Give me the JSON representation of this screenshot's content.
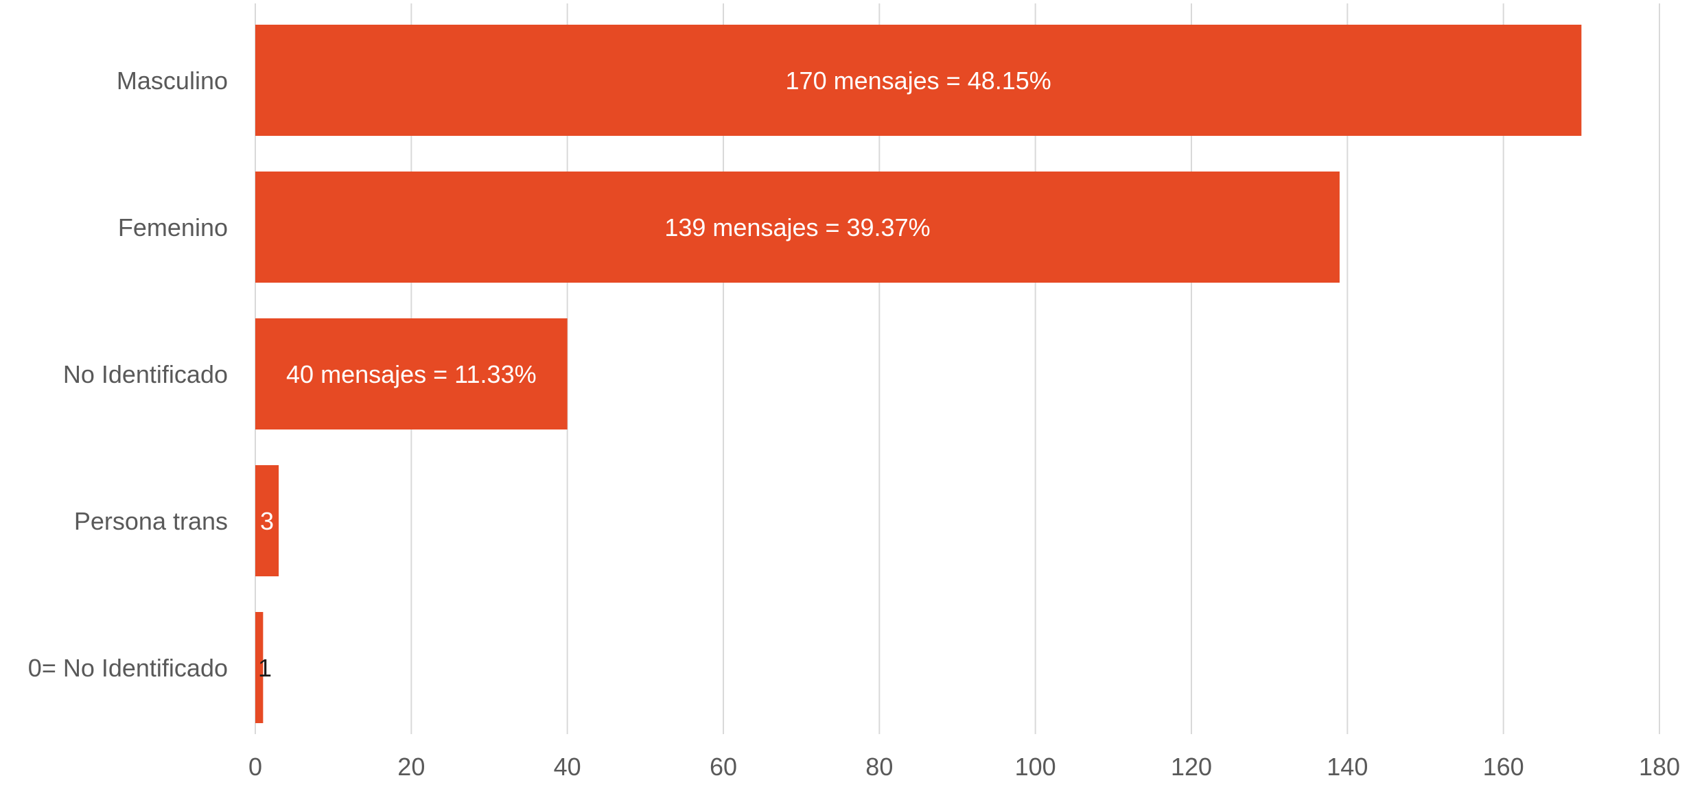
{
  "chart_data": {
    "type": "bar",
    "orientation": "horizontal",
    "title": "",
    "xlabel": "",
    "ylabel": "",
    "categories": [
      "Masculino",
      "Femenino",
      "No Identificado",
      "Persona trans",
      "0= No Identificado"
    ],
    "values": [
      170,
      139,
      40,
      3,
      1
    ],
    "data_labels": [
      "170 mensajes = 48.15%",
      "139 mensajes = 39.37%",
      "40 mensajes = 11.33%",
      "3",
      "1"
    ],
    "xlim": [
      0,
      180
    ],
    "x_ticks": [
      0,
      20,
      40,
      60,
      80,
      100,
      120,
      140,
      160,
      180
    ],
    "x_tick_labels": [
      "0",
      "20",
      "40",
      "60",
      "80",
      "100",
      "120",
      "140",
      "160",
      "180"
    ],
    "grid": "vertical",
    "legend": "none",
    "colors": {
      "bar": "#e64a24",
      "data_label": "#ffffff",
      "data_label_small": "#1a1a1a",
      "text": "#595959",
      "grid": "#d9d9d9"
    }
  }
}
